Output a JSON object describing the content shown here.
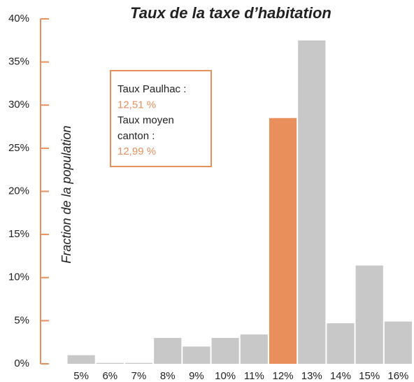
{
  "chart_data": {
    "type": "bar",
    "title": "Taux de la taxe d’habitation",
    "y_label": "Fraction de la population",
    "categories": [
      "5%",
      "6%",
      "7%",
      "8%",
      "9%",
      "10%",
      "11%",
      "12%",
      "13%",
      "14%",
      "15%",
      "16%"
    ],
    "values": [
      1.0,
      0.1,
      0.1,
      3.0,
      2.0,
      3.0,
      3.4,
      28.5,
      37.5,
      4.7,
      11.4,
      4.9
    ],
    "colors": [
      "#c8c8c8",
      "#c8c8c8",
      "#c8c8c8",
      "#c8c8c8",
      "#c8c8c8",
      "#c8c8c8",
      "#c8c8c8",
      "#e98f5c",
      "#c8c8c8",
      "#c8c8c8",
      "#c8c8c8",
      "#c8c8c8"
    ],
    "ylim": [
      0,
      40
    ],
    "yticks": [
      {
        "value": 0,
        "label": "0%"
      },
      {
        "value": 5,
        "label": "5%"
      },
      {
        "value": 10,
        "label": "10%"
      },
      {
        "value": 15,
        "label": "15%"
      },
      {
        "value": 20,
        "label": "20%"
      },
      {
        "value": 25,
        "label": "25%"
      },
      {
        "value": 30,
        "label": "30%"
      },
      {
        "value": 35,
        "label": "35%"
      },
      {
        "value": 40,
        "label": "40%"
      }
    ],
    "axis_color": "#e98f5c",
    "annotation": {
      "border_color": "#e98f5c",
      "lines": [
        {
          "text": "Taux Paulhac :",
          "color": "#222222"
        },
        {
          "text": "12,51 %",
          "color": "#e98f5c"
        },
        {
          "text": "Taux moyen",
          "color": "#222222"
        },
        {
          "text": "canton :",
          "color": "#222222"
        },
        {
          "text": "12,99 %",
          "color": "#e98f5c"
        }
      ]
    }
  }
}
